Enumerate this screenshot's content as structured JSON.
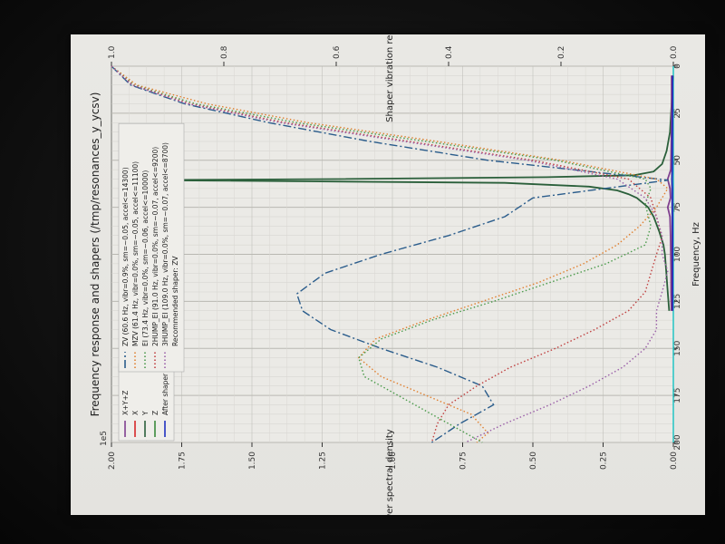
{
  "chart_data": {
    "type": "line",
    "title": "Frequency response and shapers (/tmp/resonances_y_ycsv)",
    "xlabel": "Frequency, Hz",
    "ylabel": "Power spectral density",
    "ylabel_right": "Shaper vibration reduction (ratio)",
    "xlim": [
      0,
      200
    ],
    "ylim": [
      0,
      2.0
    ],
    "ylim_right": [
      0,
      1.0
    ],
    "y_exponent": "1e5",
    "xticks": [
      "0",
      "25",
      "50",
      "75",
      "100",
      "125",
      "150",
      "175",
      "200"
    ],
    "yticks": [
      "0.00",
      "0.25",
      "0.50",
      "0.75",
      "1.00",
      "1.25",
      "1.50",
      "1.75",
      "2.00"
    ],
    "yticks_right": [
      "0.0",
      "0.2",
      "0.4",
      "0.6",
      "0.8",
      "1.0"
    ],
    "grid": true,
    "legend_psd": {
      "placement": "top-left",
      "entries": [
        {
          "label": "X+Y+Z",
          "color": "#7f3f8f",
          "style": "solid"
        },
        {
          "label": "X",
          "color": "#d62728",
          "style": "solid"
        },
        {
          "label": "Y",
          "color": "#2a5f3a",
          "style": "solid"
        },
        {
          "label": "Z",
          "color": "#3a8a3a",
          "style": "solid"
        },
        {
          "label": "After shaper",
          "color": "#1f2fbf",
          "style": "solid"
        }
      ]
    },
    "legend_shapers": {
      "placement": "top-center",
      "entries": [
        {
          "label": "ZV (60.6 Hz, vibr=0.9%, sm=~0.05, accel<=14300)",
          "color": "#2b5d8c",
          "style": "dashdot"
        },
        {
          "label": "MZV (61.4 Hz, vibr=0.0%, sm=~0.05, accel<=11100)",
          "color": "#e08030",
          "style": "dotted"
        },
        {
          "label": "EI (73.4 Hz, vibr=0.0%, sm=~0.06, accel<=10000)",
          "color": "#4a9a4a",
          "style": "dotted"
        },
        {
          "label": "2HUMP_EI (91.0 Hz, vibr=0.0%, sm=~0.07, accel<=9200)",
          "color": "#c04040",
          "style": "dotted"
        },
        {
          "label": "3HUMP_EI (109.0 Hz, vibr=0.0%, sm=~0.07, accel<=8700)",
          "color": "#9a5fa8",
          "style": "dotted"
        },
        {
          "label": "Recommended shaper: ZV",
          "color": "",
          "style": "none"
        }
      ]
    },
    "series": [
      {
        "name": "Y",
        "axis": "left",
        "color": "#2a5f3a",
        "style": "solid",
        "x": [
          5,
          20,
          35,
          45,
          52,
          56,
          58,
          59,
          60,
          60.6,
          61.2,
          62,
          64,
          66,
          68,
          70,
          75,
          80,
          88,
          95,
          100,
          110,
          120,
          130
        ],
        "y": [
          0.002,
          0.006,
          0.012,
          0.024,
          0.04,
          0.07,
          0.14,
          0.45,
          1.2,
          1.9,
          1.3,
          0.6,
          0.3,
          0.2,
          0.16,
          0.13,
          0.09,
          0.07,
          0.05,
          0.035,
          0.03,
          0.025,
          0.02,
          0.015
        ]
      },
      {
        "name": "X+Y+Z",
        "axis": "left",
        "color": "#7f3f8f",
        "style": "solid",
        "x": [
          5,
          20,
          40,
          55,
          60,
          65,
          70,
          75,
          80,
          90,
          100,
          110,
          120,
          130
        ],
        "y": [
          0.006,
          0.006,
          0.007,
          0.009,
          0.02,
          0.012,
          0.01,
          0.02,
          0.012,
          0.01,
          0.009,
          0.008,
          0.008,
          0.007
        ]
      },
      {
        "name": "X",
        "axis": "left",
        "color": "#d62728",
        "style": "solid",
        "x": [
          5,
          40,
          60,
          70,
          80,
          100,
          130
        ],
        "y": [
          0.004,
          0.004,
          0.005,
          0.004,
          0.004,
          0.004,
          0.004
        ]
      },
      {
        "name": "After shaper",
        "axis": "left",
        "color": "#1f2fbf",
        "style": "solid",
        "x": [
          5,
          20,
          40,
          55,
          60,
          65,
          75,
          90,
          110,
          130
        ],
        "y": [
          0.003,
          0.003,
          0.004,
          0.004,
          0.005,
          0.004,
          0.004,
          0.003,
          0.003,
          0.003
        ]
      },
      {
        "name": "ZV",
        "axis": "right",
        "color": "#2b5d8c",
        "style": "dashdot",
        "x": [
          0,
          10,
          20,
          30,
          40,
          50,
          60.6,
          70,
          80,
          90,
          100,
          110,
          121,
          130,
          140,
          150,
          160,
          170,
          180,
          190,
          200
        ],
        "y": [
          1.0,
          0.966,
          0.87,
          0.72,
          0.54,
          0.33,
          0.009,
          0.25,
          0.3,
          0.4,
          0.52,
          0.62,
          0.67,
          0.66,
          0.61,
          0.52,
          0.42,
          0.34,
          0.32,
          0.38,
          0.43
        ]
      },
      {
        "name": "MZV",
        "axis": "right",
        "color": "#e08030",
        "style": "dotted",
        "x": [
          0,
          10,
          20,
          30,
          40,
          50,
          60,
          65,
          75,
          85,
          95,
          105,
          115,
          125,
          135,
          145,
          155,
          165,
          175,
          185,
          195,
          200
        ],
        "y": [
          1.0,
          0.955,
          0.83,
          0.65,
          0.42,
          0.2,
          0.03,
          0.01,
          0.03,
          0.06,
          0.1,
          0.16,
          0.24,
          0.34,
          0.44,
          0.53,
          0.56,
          0.52,
          0.44,
          0.36,
          0.33,
          0.35
        ]
      },
      {
        "name": "EI",
        "axis": "right",
        "color": "#4a9a4a",
        "style": "dotted",
        "x": [
          0,
          10,
          20,
          30,
          40,
          50,
          60,
          65,
          73.4,
          85,
          95,
          105,
          115,
          125,
          135,
          145,
          155,
          165,
          175,
          185,
          200
        ],
        "y": [
          1.0,
          0.96,
          0.85,
          0.67,
          0.44,
          0.21,
          0.05,
          0.04,
          0.05,
          0.04,
          0.05,
          0.12,
          0.22,
          0.32,
          0.43,
          0.52,
          0.56,
          0.55,
          0.49,
          0.43,
          0.34
        ]
      },
      {
        "name": "2HUMP_EI",
        "axis": "right",
        "color": "#c04040",
        "style": "dotted",
        "x": [
          0,
          10,
          20,
          30,
          40,
          50,
          60,
          70,
          80,
          91,
          100,
          110,
          120,
          130,
          140,
          150,
          160,
          170,
          180,
          190,
          200
        ],
        "y": [
          1.0,
          0.962,
          0.86,
          0.69,
          0.47,
          0.25,
          0.08,
          0.04,
          0.03,
          0.02,
          0.03,
          0.04,
          0.05,
          0.08,
          0.14,
          0.21,
          0.29,
          0.35,
          0.4,
          0.42,
          0.43
        ]
      },
      {
        "name": "3HUMP_EI",
        "axis": "right",
        "color": "#9a5fa8",
        "style": "dotted",
        "x": [
          0,
          10,
          20,
          30,
          40,
          50,
          60,
          70,
          80,
          90,
          100,
          109,
          120,
          130,
          140,
          150,
          160,
          170,
          180,
          190,
          200
        ],
        "y": [
          1.0,
          0.964,
          0.865,
          0.7,
          0.48,
          0.26,
          0.1,
          0.05,
          0.03,
          0.02,
          0.02,
          0.01,
          0.02,
          0.03,
          0.03,
          0.05,
          0.09,
          0.15,
          0.22,
          0.3,
          0.37
        ]
      }
    ]
  }
}
